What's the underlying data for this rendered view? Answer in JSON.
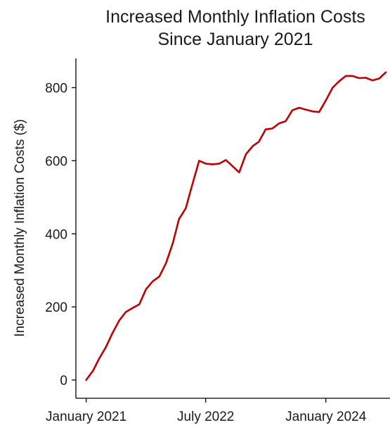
{
  "chart_data": {
    "type": "line",
    "title": [
      "Increased Monthly Inflation Costs",
      "Since January 2021"
    ],
    "xlabel": "",
    "ylabel": "Increased Monthly Inflation Costs ($)",
    "x": [
      "2021-01",
      "2021-02",
      "2021-03",
      "2021-04",
      "2021-05",
      "2021-06",
      "2021-07",
      "2021-08",
      "2021-09",
      "2021-10",
      "2021-11",
      "2021-12",
      "2022-01",
      "2022-02",
      "2022-03",
      "2022-04",
      "2022-05",
      "2022-06",
      "2022-07",
      "2022-08",
      "2022-09",
      "2022-10",
      "2022-11",
      "2022-12",
      "2023-01",
      "2023-02",
      "2023-03",
      "2023-04",
      "2023-05",
      "2023-06",
      "2023-07",
      "2023-08",
      "2023-09",
      "2023-10",
      "2023-11",
      "2023-12",
      "2024-01",
      "2024-02",
      "2024-03",
      "2024-04",
      "2024-05",
      "2024-06",
      "2024-07",
      "2024-08",
      "2024-09",
      "2024-10"
    ],
    "series": [
      {
        "color": "#c00000",
        "values": [
          0,
          25,
          58,
          90,
          128,
          163,
          186,
          197,
          207,
          248,
          270,
          283,
          320,
          375,
          440,
          470,
          535,
          600,
          592,
          590,
          592,
          602,
          585,
          568,
          618,
          640,
          652,
          686,
          688,
          702,
          708,
          738,
          745,
          740,
          735,
          733,
          765,
          800,
          817,
          832,
          832,
          826,
          827,
          820,
          825,
          842
        ]
      }
    ],
    "xticks": [
      {
        "x": "2021-01",
        "label": "January 2021"
      },
      {
        "x": "2022-07",
        "label": "July 2022"
      },
      {
        "x": "2024-01",
        "label": "January 2024"
      }
    ],
    "yticks": [
      0,
      200,
      400,
      600,
      800
    ],
    "ylim": [
      -50,
      880
    ],
    "xlim": [
      "2020-11-15",
      "2024-10-20"
    ],
    "grid": false,
    "legend": "none"
  }
}
